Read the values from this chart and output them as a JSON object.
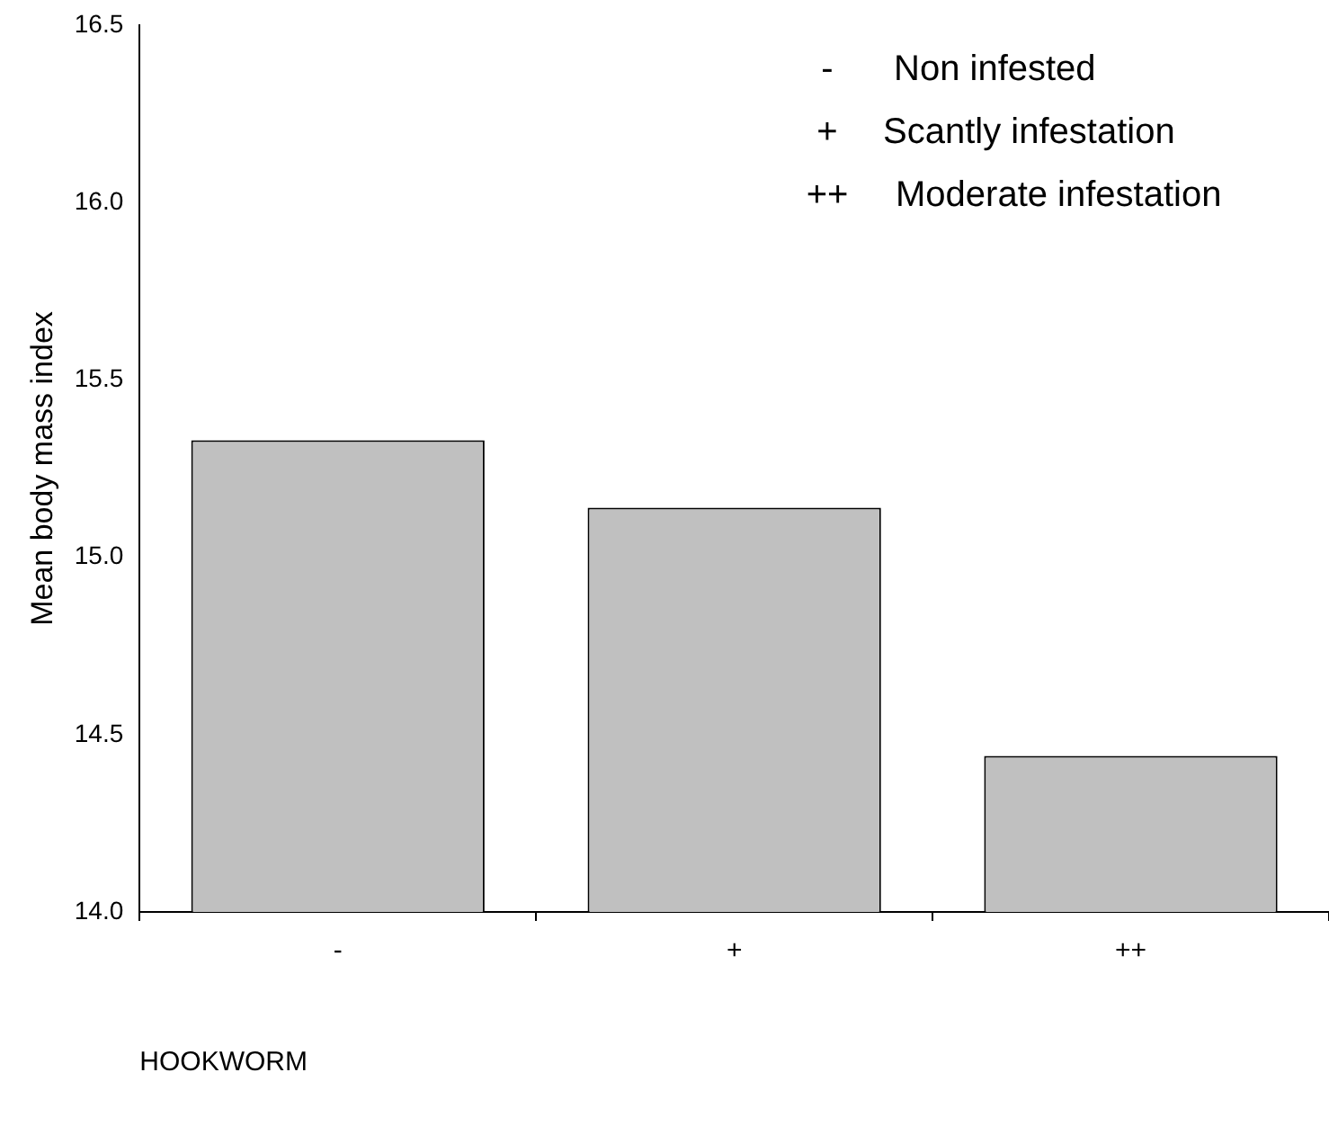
{
  "chart_data": {
    "type": "bar",
    "xlabel": "HOOKWORM",
    "ylabel": "Mean body mass index",
    "categories": [
      "-",
      "+",
      "++"
    ],
    "values": [
      15.33,
      15.14,
      14.44
    ],
    "color": "#c0c0c0",
    "ylim": [
      14.0,
      16.5
    ],
    "yticks": [
      {
        "value": 14,
        "label": "14.0"
      },
      14.5,
      {
        "value": 15,
        "label": "15.0"
      },
      15.5,
      {
        "value": 16,
        "label": "16.0"
      },
      16.5
    ],
    "grid": false,
    "legend": false,
    "annotations": [
      "-   Non infested",
      "+    Scantly infestation",
      "++   Moderate infestation"
    ]
  }
}
